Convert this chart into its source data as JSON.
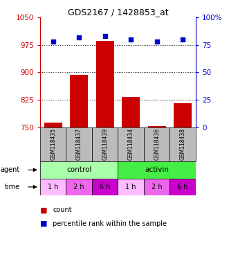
{
  "title": "GDS2167 / 1428853_at",
  "samples": [
    "GSM118435",
    "GSM118437",
    "GSM118439",
    "GSM118434",
    "GSM118436",
    "GSM118438"
  ],
  "counts": [
    762,
    892,
    985,
    832,
    752,
    815
  ],
  "percentiles": [
    78,
    82,
    83,
    80,
    78,
    80
  ],
  "ylim_left": [
    750,
    1050
  ],
  "ylim_right": [
    0,
    100
  ],
  "yticks_left": [
    750,
    825,
    900,
    975,
    1050
  ],
  "yticks_right": [
    0,
    25,
    50,
    75,
    100
  ],
  "bar_color": "#CC0000",
  "dot_color": "#0000CC",
  "agent_labels": [
    "control",
    "activin"
  ],
  "agent_color_control": "#AAFFAA",
  "agent_color_activin": "#44EE44",
  "time_colors": [
    "#FFBBFF",
    "#EE66EE",
    "#CC00CC",
    "#FFBBFF",
    "#EE66EE",
    "#CC00CC"
  ],
  "time_labels": [
    "1 h",
    "2 h",
    "6 h",
    "1 h",
    "2 h",
    "6 h"
  ],
  "sample_bg": "#BBBBBB",
  "legend_count_color": "#CC0000",
  "legend_pct_color": "#0000CC"
}
